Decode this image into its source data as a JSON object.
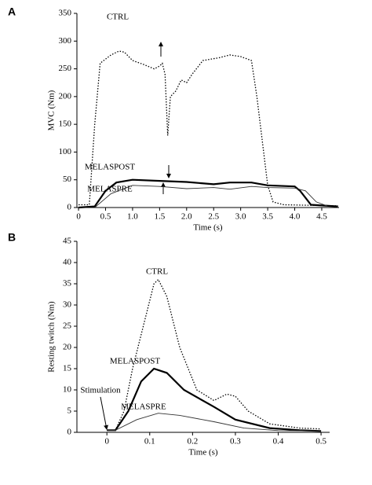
{
  "chart_data": [
    {
      "type": "line",
      "panel": "A",
      "xlabel": "Time (s)",
      "ylabel": "MVC (Nm)",
      "xlim": [
        -0.03,
        4.82
      ],
      "ylim": [
        0,
        350
      ],
      "xticks": [
        0,
        0.5,
        {
          "value": 1,
          "label": "1.0"
        },
        1.5,
        {
          "value": 2,
          "label": "2.0"
        },
        2.5,
        {
          "value": 3,
          "label": "3.0"
        },
        3.5,
        {
          "value": 4,
          "label": "4.0"
        },
        4.5
      ],
      "yticks": [
        0,
        50,
        100,
        150,
        200,
        250,
        300,
        350
      ],
      "series": [
        {
          "name": "CTRL",
          "color": "#000000",
          "style": "dotted",
          "x": [
            0,
            0.2,
            0.3,
            0.4,
            0.6,
            0.75,
            0.85,
            1.0,
            1.2,
            1.4,
            1.5,
            1.55,
            1.6,
            1.65,
            1.7,
            1.8,
            1.9,
            2.0,
            2.1,
            2.3,
            2.6,
            2.8,
            3.0,
            3.2,
            3.3,
            3.4,
            3.5,
            3.6,
            3.8,
            4.8
          ],
          "values": [
            5,
            5,
            150,
            260,
            275,
            282,
            280,
            265,
            258,
            250,
            255,
            260,
            240,
            130,
            200,
            210,
            230,
            225,
            240,
            265,
            270,
            275,
            272,
            265,
            200,
            120,
            40,
            10,
            5,
            3
          ]
        },
        {
          "name": "MELASPOST",
          "color": "#000000",
          "style": "thick",
          "x": [
            0,
            0.3,
            0.5,
            0.7,
            1.0,
            1.5,
            2.0,
            2.5,
            2.8,
            3.2,
            3.5,
            4.0,
            4.1,
            4.3,
            4.8
          ],
          "values": [
            0,
            2,
            30,
            45,
            50,
            48,
            46,
            42,
            45,
            45,
            40,
            38,
            30,
            5,
            2
          ]
        },
        {
          "name": "MELASPRE",
          "color": "#333333",
          "style": "thin",
          "x": [
            0.3,
            0.6,
            1.0,
            1.5,
            2.0,
            2.5,
            2.8,
            3.2,
            3.5,
            4.0,
            4.2,
            4.4,
            4.6
          ],
          "values": [
            0,
            25,
            40,
            38,
            34,
            36,
            33,
            38,
            36,
            35,
            30,
            10,
            3
          ]
        }
      ]
    },
    {
      "type": "line",
      "panel": "B",
      "xlabel": "Time (s)",
      "ylabel": "Resting twitch (Nm)",
      "annotation": "Stimulation",
      "xlim": [
        -0.07,
        0.52
      ],
      "ylim": [
        0,
        45
      ],
      "xticks": [
        0,
        0.1,
        0.2,
        0.3,
        0.4,
        0.5
      ],
      "yticks": [
        0,
        5,
        10,
        15,
        20,
        25,
        30,
        35,
        40,
        45
      ],
      "series": [
        {
          "name": "CTRL",
          "color": "#000000",
          "style": "dotted",
          "x": [
            0,
            0.02,
            0.04,
            0.06,
            0.09,
            0.11,
            0.12,
            0.14,
            0.17,
            0.21,
            0.25,
            0.28,
            0.3,
            0.33,
            0.38,
            0.45,
            0.5
          ],
          "values": [
            0.5,
            0.5,
            5,
            15,
            27,
            35,
            36,
            32,
            20,
            10,
            7.5,
            9,
            8.5,
            5,
            2,
            1,
            0.8
          ]
        },
        {
          "name": "MELASPOST",
          "color": "#000000",
          "style": "thick",
          "x": [
            0,
            0.02,
            0.05,
            0.08,
            0.11,
            0.14,
            0.18,
            0.25,
            0.3,
            0.38,
            0.45,
            0.5
          ],
          "values": [
            0.5,
            0.5,
            5,
            12,
            15,
            14,
            10,
            6,
            3,
            1,
            0.5,
            0.3
          ]
        },
        {
          "name": "MELASPRE",
          "color": "#333333",
          "style": "thin",
          "x": [
            0,
            0.02,
            0.07,
            0.12,
            0.17,
            0.25,
            0.32,
            0.4,
            0.5
          ],
          "values": [
            0.5,
            0.5,
            3,
            4.5,
            4,
            2.5,
            1,
            0.4,
            0.3
          ]
        }
      ]
    }
  ]
}
